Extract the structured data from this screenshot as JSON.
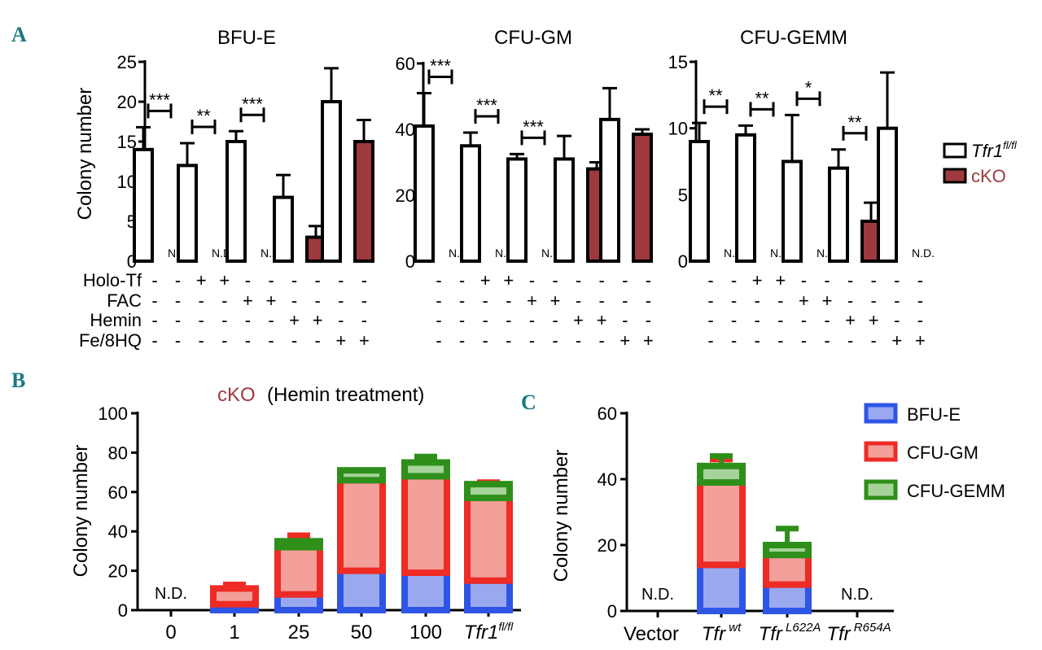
{
  "panels": {
    "a": "A",
    "b": "B",
    "c": "C"
  },
  "chart_data": [
    {
      "type": "bar",
      "panel": "A",
      "title": "BFU-E",
      "ylabel": "Colony number",
      "ylim": [
        0,
        25
      ],
      "yticks": [
        "0",
        "5",
        "10",
        "15",
        "20",
        "25"
      ],
      "series": [
        {
          "name": "Tfr1 fl/fl",
          "values": [
            14,
            12,
            15,
            8,
            20
          ],
          "errors": [
            2.8,
            2.8,
            1.3,
            2.8,
            4.2
          ]
        },
        {
          "name": "cKO",
          "values": [
            0,
            0,
            0,
            3,
            15
          ],
          "errors": [
            0,
            0,
            0,
            1.4,
            2.7
          ]
        }
      ],
      "nd_label": "N.D.",
      "significance": [
        "***",
        "**",
        "***"
      ],
      "conditions": {
        "Holo-Tf": [
          "-",
          "-",
          "+",
          "+",
          "-",
          "-",
          "-",
          "-",
          "-",
          "-"
        ],
        "FAC": [
          "-",
          "-",
          "-",
          "-",
          "+",
          "+",
          "-",
          "-",
          "-",
          "-"
        ],
        "Hemin": [
          "-",
          "-",
          "-",
          "-",
          "-",
          "-",
          "+",
          "+",
          "-",
          "-"
        ],
        "Fe/8HQ": [
          "-",
          "-",
          "-",
          "-",
          "-",
          "-",
          "-",
          "-",
          "+",
          "+"
        ]
      }
    },
    {
      "type": "bar",
      "panel": "A",
      "title": "CFU-GM",
      "ylabel": "",
      "ylim": [
        0,
        60
      ],
      "yticks": [
        "0",
        "20",
        "40",
        "60"
      ],
      "series": [
        {
          "name": "Tfr1 fl/fl",
          "values": [
            41,
            35,
            31,
            31,
            43
          ],
          "errors": [
            10,
            4,
            1.5,
            7,
            9.5
          ]
        },
        {
          "name": "cKO",
          "values": [
            0,
            0,
            0,
            28,
            38.5
          ],
          "errors": [
            0,
            0,
            0,
            2,
            1.5
          ]
        }
      ],
      "nd_label": "N.D.",
      "significance": [
        "***",
        "***",
        "***"
      ],
      "conditions": {
        "Holo-Tf": [
          "-",
          "-",
          "+",
          "+",
          "-",
          "-",
          "-",
          "-",
          "-",
          "-"
        ],
        "FAC": [
          "-",
          "-",
          "-",
          "-",
          "+",
          "+",
          "-",
          "-",
          "-",
          "-"
        ],
        "Hemin": [
          "-",
          "-",
          "-",
          "-",
          "-",
          "-",
          "+",
          "+",
          "-",
          "-"
        ],
        "Fe/8HQ": [
          "-",
          "-",
          "-",
          "-",
          "-",
          "-",
          "-",
          "-",
          "+",
          "+"
        ]
      }
    },
    {
      "type": "bar",
      "panel": "A",
      "title": "CFU-GEMM",
      "ylabel": "",
      "ylim": [
        0,
        15
      ],
      "yticks": [
        "0",
        "5",
        "10",
        "15"
      ],
      "series": [
        {
          "name": "Tfr1 fl/fl",
          "values": [
            9,
            9.5,
            7.5,
            7,
            10
          ],
          "errors": [
            1.4,
            0.7,
            3.5,
            1.4,
            4.2
          ]
        },
        {
          "name": "cKO",
          "values": [
            0,
            0,
            0,
            3,
            0
          ],
          "errors": [
            0,
            0,
            0,
            1.4,
            0
          ]
        }
      ],
      "nd_label": "N.D.",
      "significance": [
        "**",
        "**",
        "*",
        "**"
      ],
      "conditions": {
        "Holo-Tf": [
          "-",
          "-",
          "+",
          "+",
          "-",
          "-",
          "-",
          "-",
          "-",
          "-"
        ],
        "FAC": [
          "-",
          "-",
          "-",
          "-",
          "+",
          "+",
          "-",
          "-",
          "-",
          "-"
        ],
        "Hemin": [
          "-",
          "-",
          "-",
          "-",
          "-",
          "-",
          "+",
          "+",
          "-",
          "-"
        ],
        "Fe/8HQ": [
          "-",
          "-",
          "-",
          "-",
          "-",
          "-",
          "-",
          "-",
          "+",
          "+"
        ]
      }
    },
    {
      "type": "bar",
      "panel": "B",
      "stacked": true,
      "title": "(Hemin treatment)",
      "title_prefix": "cKO",
      "ylabel": "Colony number",
      "ylim": [
        0,
        100
      ],
      "yticks": [
        "0",
        "20",
        "40",
        "60",
        "80",
        "100"
      ],
      "categories": [
        "0",
        "1",
        "25",
        "50",
        "100",
        "Tfr1"
      ],
      "category_superscript": "fl/fl",
      "nd_label": "N.D.",
      "series": [
        {
          "name": "BFU-E",
          "values": [
            0,
            3,
            8,
            20,
            19,
            15
          ],
          "errors": [
            0,
            1.5,
            3,
            1.5,
            2,
            2
          ]
        },
        {
          "name": "CFU-GM",
          "values": [
            0,
            8,
            24,
            46,
            49,
            42
          ],
          "errors": [
            0,
            2,
            6,
            1.5,
            1.5,
            8
          ]
        },
        {
          "name": "CFU-GEMM",
          "values": [
            0,
            0,
            3,
            5,
            7,
            7
          ],
          "errors": [
            0,
            0,
            0,
            0,
            3,
            0
          ]
        }
      ]
    },
    {
      "type": "bar",
      "panel": "C",
      "stacked": true,
      "ylabel": "Colony number",
      "ylim": [
        0,
        60
      ],
      "yticks": [
        "0",
        "20",
        "40",
        "60"
      ],
      "categories": [
        {
          "base": "Vector",
          "sup": ""
        },
        {
          "base": "Tfr",
          "sup": "wt"
        },
        {
          "base": "Tfr",
          "sup": "L622A"
        },
        {
          "base": "Tfr",
          "sup": "R654A"
        }
      ],
      "nd_label": "N.D.",
      "series": [
        {
          "name": "BFU-E",
          "values": [
            0,
            14,
            8,
            0
          ],
          "errors": [
            0,
            0,
            0,
            0
          ]
        },
        {
          "name": "CFU-GM",
          "values": [
            0,
            25,
            9,
            0
          ],
          "errors": [
            0,
            7,
            1,
            0
          ]
        },
        {
          "name": "CFU-GEMM",
          "values": [
            0,
            5,
            3,
            0
          ],
          "errors": [
            0,
            3,
            5,
            0
          ]
        }
      ]
    }
  ],
  "legend_a": {
    "wt_base": "Tfr1",
    "wt_sup": "fl/fl",
    "ko": "cKO"
  },
  "legend_bc": [
    "BFU-E",
    "CFU-GM",
    "CFU-GEMM"
  ],
  "colors": {
    "ko_fill": "#a0393f",
    "bfue_edge": "#2f55e6",
    "bfue_fill": "#9aa9ef",
    "gm_edge": "#ee2b24",
    "gm_fill": "#f3a09b",
    "gemm_edge": "#2e8f1a",
    "gemm_fill": "#a6d39a",
    "teal": "#1a7a82",
    "ko_text": "#a0393f"
  }
}
